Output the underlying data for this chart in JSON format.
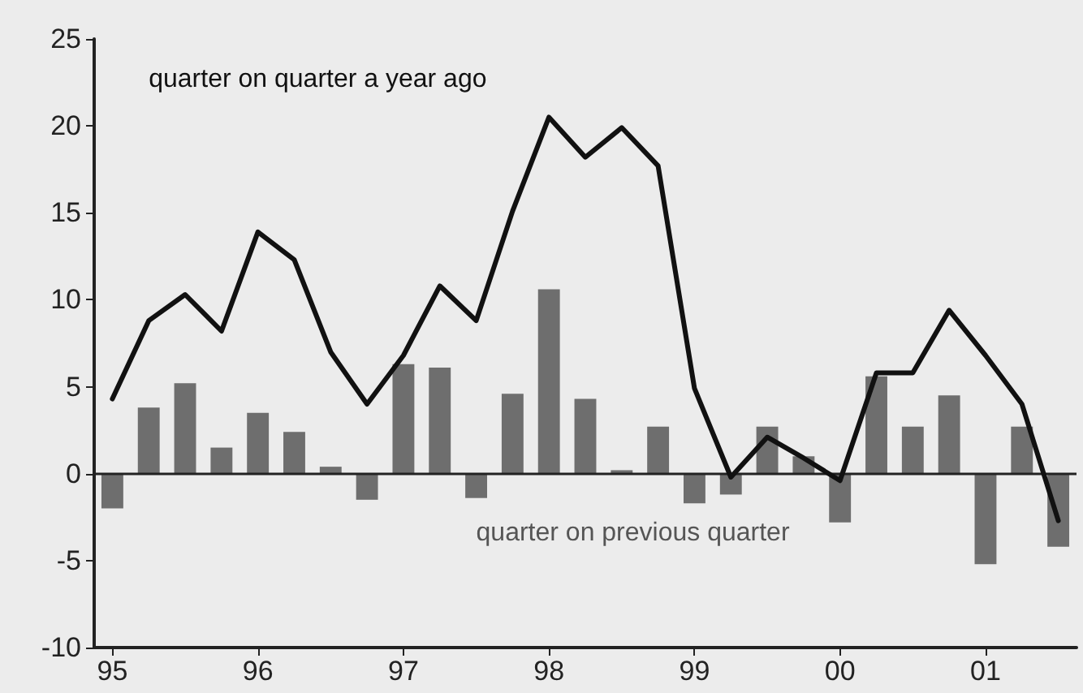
{
  "chart_data": {
    "type": "bar",
    "categories": [
      "95",
      null,
      null,
      null,
      "96",
      null,
      null,
      null,
      "97",
      null,
      null,
      null,
      "98",
      null,
      null,
      null,
      "99",
      null,
      null,
      null,
      "00",
      null,
      null,
      null,
      "01",
      null,
      null
    ],
    "series": [
      {
        "name": "quarter on previous quarter",
        "color": "#6e6e6e",
        "values": [
          -2.0,
          3.8,
          5.2,
          1.5,
          3.5,
          2.4,
          0.4,
          -1.5,
          6.3,
          6.1,
          -1.4,
          4.6,
          10.6,
          4.3,
          0.2,
          2.7,
          -1.7,
          -1.2,
          2.7,
          1.0,
          -2.8,
          5.6,
          2.7,
          4.5,
          -5.2,
          2.7,
          -4.2
        ]
      },
      {
        "name": "quarter on quarter a year ago",
        "type": "line",
        "color": "#111111",
        "values": [
          4.3,
          8.8,
          10.3,
          8.2,
          13.9,
          12.3,
          7.0,
          4.0,
          6.8,
          10.8,
          8.8,
          15.1,
          20.5,
          18.2,
          19.9,
          17.7,
          4.9,
          -0.2,
          2.1,
          0.9,
          -0.4,
          5.8,
          5.8,
          9.4,
          6.8,
          4.0,
          -2.7
        ]
      }
    ],
    "ylim": [
      -10,
      25
    ],
    "yticks": [
      -10,
      -5,
      0,
      5,
      10,
      15,
      20,
      25
    ],
    "ref_lines": [
      {
        "axis": "y",
        "value": 0,
        "color": "#222222"
      }
    ],
    "grid": false,
    "marker": "none",
    "line_style": "solid"
  }
}
